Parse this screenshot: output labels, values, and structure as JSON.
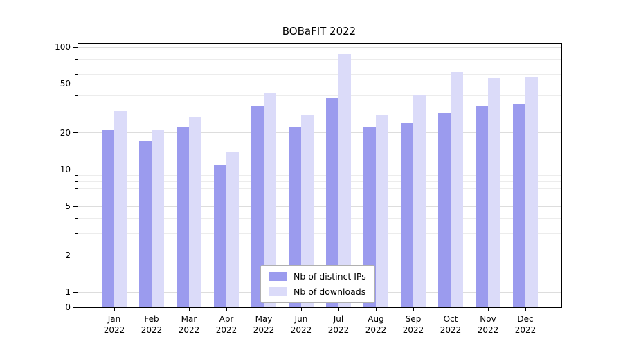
{
  "chart_data": {
    "type": "bar",
    "title": "BOBaFIT 2022",
    "months": [
      "Jan",
      "Feb",
      "Mar",
      "Apr",
      "May",
      "Jun",
      "Jul",
      "Aug",
      "Sep",
      "Oct",
      "Nov",
      "Dec"
    ],
    "year_label": "2022",
    "series": [
      {
        "name": "Nb of distinct IPs",
        "color": "#9b9bee",
        "values": [
          21,
          17,
          22,
          11,
          33,
          22,
          38,
          22,
          24,
          29,
          33,
          34
        ]
      },
      {
        "name": "Nb of downloads",
        "color": "#dbdbf9",
        "values": [
          30,
          21,
          27,
          14,
          42,
          28,
          88,
          28,
          40,
          63,
          56,
          57
        ]
      }
    ],
    "y_axis": {
      "scale": "symlog",
      "major_ticks": [
        0,
        1,
        2,
        5,
        10,
        20,
        50,
        100
      ],
      "range": [
        0,
        107
      ]
    },
    "xlabel": "",
    "ylabel": "",
    "grid": "horizontal",
    "legend": {
      "position": "lower center",
      "entries": [
        "Nb of distinct IPs",
        "Nb of downloads"
      ]
    }
  }
}
